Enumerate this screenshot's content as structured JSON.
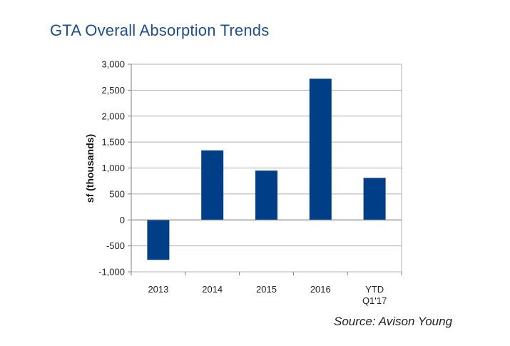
{
  "chart_data": {
    "type": "bar",
    "title": "GTA Overall Absorption Trends",
    "ylabel": "sf (thousands)",
    "xlabel": "",
    "categories": [
      "2013",
      "2014",
      "2015",
      "2016",
      "YTD Q1'17"
    ],
    "category_lines": [
      [
        "2013"
      ],
      [
        "2014"
      ],
      [
        "2015"
      ],
      [
        "2016"
      ],
      [
        "YTD",
        "Q1'17"
      ]
    ],
    "values": [
      -770,
      1340,
      950,
      2720,
      810
    ],
    "ylim": [
      -1000,
      3000
    ],
    "yticks": [
      -1000,
      -500,
      0,
      500,
      1000,
      1500,
      2000,
      2500,
      3000
    ],
    "ytick_labels": [
      "-1,000",
      "-500",
      "0",
      "500",
      "1,000",
      "1,500",
      "2,000",
      "2,500",
      "3,000"
    ],
    "grid": true,
    "bar_color": "#003f87",
    "grid_color": "#b0b0b0"
  },
  "source": "Source: Avison Young"
}
